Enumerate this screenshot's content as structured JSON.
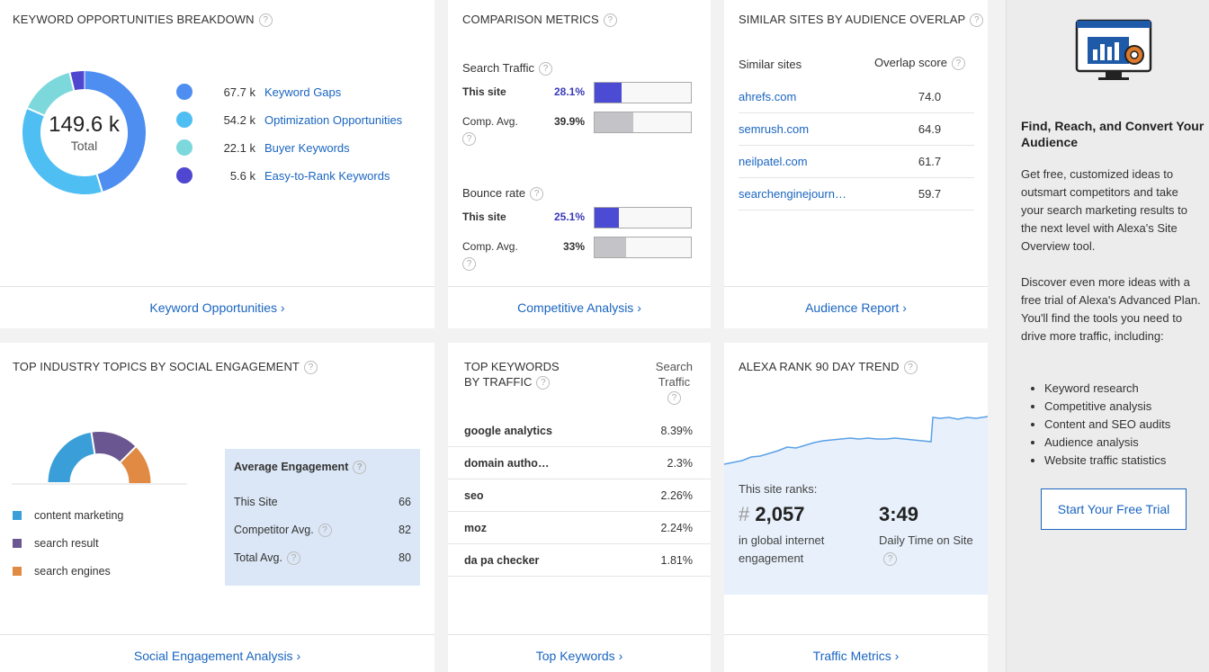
{
  "keyword_card": {
    "title": "KEYWORD OPPORTUNITIES BREAKDOWN",
    "total_value": "149.6 k",
    "total_label": "Total",
    "items": [
      {
        "value": "67.7 k",
        "label": "Keyword Gaps",
        "color": "#4e8ef0"
      },
      {
        "value": "54.2 k",
        "label": "Optimization Opportunities",
        "color": "#4fbff3"
      },
      {
        "value": "22.1 k",
        "label": "Buyer Keywords",
        "color": "#7dd8dc"
      },
      {
        "value": "5.6 k",
        "label": "Easy-to-Rank Keywords",
        "color": "#5047d0"
      }
    ],
    "footer": "Keyword Opportunities ›"
  },
  "comparison_card": {
    "title": "COMPARISON METRICS",
    "metrics": [
      {
        "name": "Search Traffic",
        "this_label": "This site",
        "this_value": "28.1%",
        "this_fraction": 0.281,
        "avg_label": "Comp. Avg.",
        "avg_value": "39.9%",
        "avg_fraction": 0.399
      },
      {
        "name": "Bounce rate",
        "this_label": "This site",
        "this_value": "25.1%",
        "this_fraction": 0.251,
        "avg_label": "Comp. Avg.",
        "avg_value": "33%",
        "avg_fraction": 0.33
      }
    ],
    "footer": "Competitive Analysis ›"
  },
  "similar_card": {
    "title": "SIMILAR SITES BY AUDIENCE OVERLAP",
    "col_sites": "Similar sites",
    "col_score": "Overlap score",
    "rows": [
      {
        "site": "ahrefs.com",
        "score": "74.0"
      },
      {
        "site": "semrush.com",
        "score": "64.9"
      },
      {
        "site": "neilpatel.com",
        "score": "61.7"
      },
      {
        "site": "searchenginejourn…",
        "score": "59.7"
      }
    ],
    "footer": "Audience Report ›"
  },
  "topics_card": {
    "title": "TOP INDUSTRY TOPICS BY SOCIAL ENGAGEMENT",
    "topics": [
      {
        "label": "content marketing",
        "color": "#3a9fd8"
      },
      {
        "label": "search result",
        "color": "#6a5690"
      },
      {
        "label": "search engines",
        "color": "#e08a43"
      }
    ],
    "engagement_title": "Average Engagement",
    "engagement_rows": [
      {
        "label": "This Site",
        "value": "66"
      },
      {
        "label": "Competitor Avg.",
        "value": "82"
      },
      {
        "label": "Total Avg.",
        "value": "80"
      }
    ],
    "footer": "Social Engagement Analysis ›"
  },
  "keywords_card": {
    "title_line1": "TOP KEYWORDS",
    "title_line2": "BY TRAFFIC",
    "col_line1": "Search",
    "col_line2": "Traffic",
    "rows": [
      {
        "keyword": "google analytics",
        "value": "8.39%"
      },
      {
        "keyword": "domain autho…",
        "value": "2.3%"
      },
      {
        "keyword": "seo",
        "value": "2.26%"
      },
      {
        "keyword": "moz",
        "value": "2.24%"
      },
      {
        "keyword": "da pa checker",
        "value": "1.81%"
      }
    ],
    "footer": "Top Keywords ›"
  },
  "rank_card": {
    "title": "ALEXA RANK 90 DAY TREND",
    "ranks_label": "This site ranks:",
    "hash": "#",
    "rank_value": "2,057",
    "rank_desc": "in global internet engagement",
    "time_value": "3:49",
    "time_desc": "Daily Time on Site",
    "footer": "Traffic Metrics ›"
  },
  "sidebar": {
    "heading": "Find, Reach, and Convert Your Audience",
    "para1": "Get free, customized ideas to outsmart competitors and take your search marketing results to the next level with Alexa's Site Overview tool.",
    "para2": "Discover even more ideas with a free trial of Alexa's Advanced Plan. You'll find the tools you need to drive more traffic, including:",
    "bullets": [
      "Keyword research",
      "Competitive analysis",
      "Content and SEO audits",
      "Audience analysis",
      "Website traffic statistics"
    ],
    "cta": "Start Your Free Trial"
  },
  "colors": {
    "link": "#1a65c0",
    "this_site_bar": "#4b4bd4",
    "avg_bar": "#c4c4c8",
    "trend_line": "#5aa0e6",
    "trend_fill": "#e8f1fb"
  }
}
